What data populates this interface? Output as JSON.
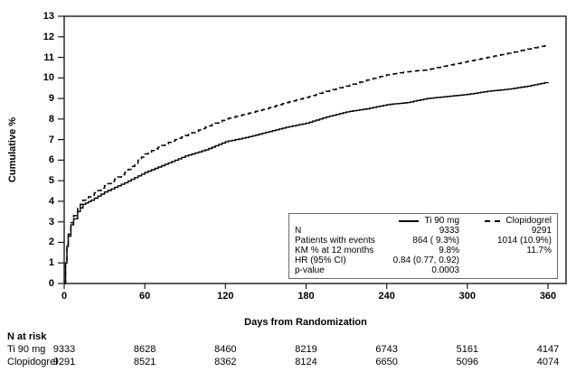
{
  "chart_data": {
    "type": "line",
    "title": "",
    "xlabel": "Days from Randomization",
    "ylabel": "Cumulative %",
    "xlim": [
      0,
      373
    ],
    "ylim": [
      0,
      13
    ],
    "x_ticks": [
      0,
      60,
      120,
      180,
      240,
      300,
      360
    ],
    "y_ticks": [
      0,
      1,
      2,
      3,
      4,
      5,
      6,
      7,
      8,
      9,
      10,
      11,
      12,
      13
    ],
    "grid": false,
    "legend_position": "inside-bottom-right-box",
    "x": [
      0,
      1,
      2,
      3,
      5,
      7,
      10,
      14,
      20,
      30,
      45,
      60,
      75,
      90,
      105,
      120,
      135,
      150,
      165,
      180,
      195,
      210,
      225,
      240,
      255,
      270,
      285,
      300,
      315,
      330,
      345,
      360
    ],
    "series": [
      {
        "name": "Ti 90 mg",
        "style": "solid",
        "color": "#000000",
        "values": [
          0,
          1.0,
          1.8,
          2.3,
          2.85,
          3.15,
          3.5,
          3.85,
          4.05,
          4.45,
          4.9,
          5.4,
          5.8,
          6.2,
          6.5,
          6.9,
          7.1,
          7.35,
          7.6,
          7.8,
          8.1,
          8.35,
          8.5,
          8.7,
          8.8,
          9.0,
          9.1,
          9.2,
          9.35,
          9.45,
          9.6,
          9.8
        ]
      },
      {
        "name": "Clopidogrel",
        "style": "dashed",
        "color": "#000000",
        "values": [
          0,
          1.05,
          1.9,
          2.4,
          2.95,
          3.3,
          3.65,
          4.05,
          4.3,
          4.75,
          5.4,
          6.3,
          6.8,
          7.2,
          7.6,
          8.0,
          8.25,
          8.5,
          8.8,
          9.05,
          9.35,
          9.6,
          9.9,
          10.15,
          10.3,
          10.4,
          10.6,
          10.8,
          11.0,
          11.2,
          11.4,
          11.6
        ]
      }
    ]
  },
  "stats_box": {
    "columns": [
      {
        "name": "Ti 90 mg",
        "line_style": "solid"
      },
      {
        "name": "Clopidogrel",
        "line_style": "dashed"
      }
    ],
    "rows": [
      {
        "label": "N",
        "ti": "9333",
        "clop": "9291"
      },
      {
        "label": "Patients with events",
        "ti": "864 ( 9.3%)",
        "clop": "1014 (10.9%)"
      },
      {
        "label": "KM % at 12 months",
        "ti": "9.8%",
        "clop": "11.7%"
      },
      {
        "label": "HR (95% CI)",
        "ti": "0.84 (0.77, 0.92)",
        "clop": ""
      },
      {
        "label": "p-value",
        "ti": "0.0003",
        "clop": ""
      }
    ]
  },
  "n_at_risk": {
    "title": "N at risk",
    "days": [
      0,
      60,
      120,
      180,
      240,
      300,
      360
    ],
    "rows": [
      {
        "label": "Ti 90 mg",
        "values": [
          "9333",
          "8628",
          "8460",
          "8219",
          "6743",
          "5161",
          "4147"
        ]
      },
      {
        "label": "Clopidogrel",
        "values": [
          "9291",
          "8521",
          "8362",
          "8124",
          "6650",
          "5096",
          "4074"
        ]
      }
    ]
  },
  "colors": {
    "curve": "#000000",
    "frame": "#1a1a1a",
    "box_border": "#6b6b6b",
    "text": "#000000"
  }
}
